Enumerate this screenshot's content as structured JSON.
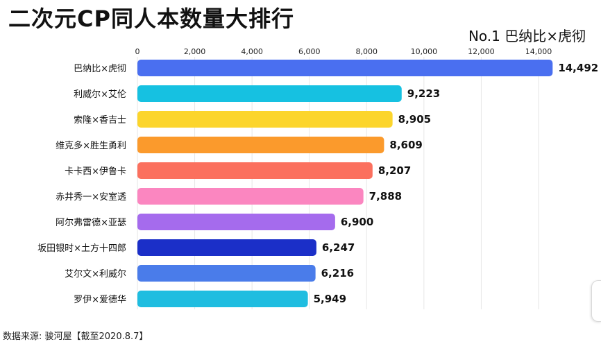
{
  "header": {
    "title": "二次元CP同人本数量大排行",
    "leader": "No.1 巴纳比×虎彻"
  },
  "footer": {
    "source": "数据来源: 骏河屋【截至2020.8.7】"
  },
  "chart_data": {
    "type": "bar",
    "orientation": "horizontal",
    "title": "二次元CP同人本数量大排行",
    "categories": [
      "巴纳比×虎彻",
      "利威尔×艾伦",
      "索隆×香吉士",
      "维克多×胜生勇利",
      "卡卡西×伊鲁卡",
      "赤井秀一×安室透",
      "阿尔弗雷德×亚瑟",
      "坂田银时×土方十四郎",
      "艾尔文×利威尔",
      "罗伊×爱德华"
    ],
    "values": [
      14492,
      9223,
      8905,
      8609,
      8207,
      7888,
      6900,
      6247,
      6216,
      5949
    ],
    "value_labels": [
      "14,492",
      "9,223",
      "8,905",
      "8,609",
      "8,207",
      "7,888",
      "6,900",
      "6,247",
      "6,216",
      "5,949"
    ],
    "colors": [
      "#4a6ff0",
      "#16c1e1",
      "#fcd52c",
      "#fb9a2c",
      "#fb705e",
      "#fb86c0",
      "#a56bed",
      "#1b2fc8",
      "#4a7cea",
      "#1fbde0"
    ],
    "xticks": [
      0,
      2000,
      4000,
      6000,
      8000,
      10000,
      12000,
      14000
    ],
    "xtick_labels": [
      "0",
      "2,000",
      "4,000",
      "6,000",
      "8,000",
      "10,000",
      "12,000",
      "14,000"
    ],
    "xlim": [
      0,
      15000
    ],
    "grid": true,
    "xaxis_position": "top"
  }
}
